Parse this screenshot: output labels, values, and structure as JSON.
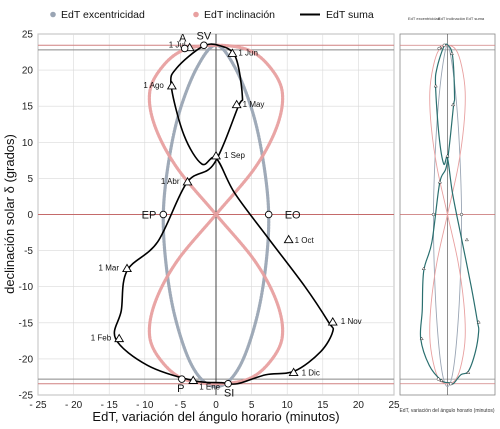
{
  "chart_data": {
    "type": "scatter",
    "xlabel": "EdT, variación del ángulo horario (minutos)",
    "ylabel": "declinación solar δ (grados)",
    "xlim": [
      -25,
      25
    ],
    "ylim": [
      -25,
      25
    ],
    "x_ticks": [
      -25,
      -20,
      -15,
      -10,
      -5,
      0,
      5,
      10,
      15,
      20,
      25
    ],
    "y_ticks": [
      -25,
      -20,
      -15,
      -10,
      -5,
      0,
      5,
      10,
      15,
      20,
      25
    ],
    "x_tick_labels": [
      "- 25",
      "- 20",
      "- 15",
      "- 10",
      "- 5",
      "0",
      "5",
      "10",
      "15",
      "20",
      "25"
    ],
    "y_tick_labels": [
      "-25",
      "-20",
      "-15",
      "-10",
      "-5",
      "0",
      "5",
      "10",
      "15",
      "20",
      "25"
    ],
    "legend_placement": "top",
    "reference_lines": {
      "horizontal": [
        23.44,
        22.8,
        0,
        -22.8,
        -23.44
      ],
      "vertical": [
        0
      ]
    },
    "series": [
      {
        "name": "EdT excentricidad",
        "style": "dotted",
        "color": "#9aa5b4",
        "x": [
          0,
          2.7,
          5.2,
          6.7,
          7.4,
          7.0,
          5.8,
          3.7,
          1.3,
          -1.3,
          -3.7,
          -5.8,
          -7.0,
          -7.4,
          -6.7,
          -5.2,
          -2.7,
          0
        ],
        "y": [
          23.44,
          20.3,
          14.0,
          7.0,
          0,
          -7.0,
          -14.0,
          -20.3,
          -23.44,
          -23.44,
          -20.3,
          -14.0,
          -7.0,
          0,
          7.0,
          14.0,
          20.3,
          23.44
        ]
      },
      {
        "name": "EdT inclinación",
        "style": "dotted",
        "color": "#e8a0a0",
        "x": [
          0,
          5.5,
          8.6,
          9.3,
          7.5,
          4.5,
          0,
          -4.5,
          -7.5,
          -9.3,
          -8.6,
          -5.5,
          0,
          5.5,
          8.6,
          9.3,
          7.5,
          4.5,
          0,
          -4.5,
          -7.5,
          -9.3,
          -8.6,
          -5.5,
          0
        ],
        "y": [
          0,
          6.5,
          12.3,
          17.0,
          20.5,
          22.8,
          23.44,
          22.8,
          20.5,
          17.0,
          12.3,
          6.5,
          0,
          -6.5,
          -12.3,
          -17.0,
          -20.5,
          -22.8,
          -23.44,
          -22.8,
          -20.5,
          -17.0,
          -12.3,
          -6.5,
          0
        ]
      },
      {
        "name": "EdT suma",
        "style": "solid",
        "color": "#000000",
        "x": [
          -3.2,
          -9.6,
          -14.1,
          -13.3,
          -12.5,
          -8.2,
          -4.1,
          -0.3,
          3.1,
          3.7,
          2.7,
          0.3,
          -2.0,
          -5.5,
          -6.3,
          -4.5,
          -2.0,
          0.0,
          2.6,
          7.2,
          12.5,
          15.8,
          16.4,
          14.7,
          11.0,
          7.0,
          3.0,
          0.8,
          -3.2
        ],
        "y": [
          -23.0,
          -20.9,
          -17.2,
          -13.3,
          -7.8,
          -3.8,
          4.4,
          7.0,
          14.9,
          16.4,
          21.9,
          23.44,
          23.2,
          20.3,
          17.9,
          11.0,
          7.0,
          7.8,
          3.0,
          -3.1,
          -10.0,
          -14.9,
          -16.2,
          -19.0,
          -21.7,
          -22.2,
          -23.44,
          -23.3,
          -23.0
        ]
      }
    ],
    "month_markers": [
      {
        "label": "1 Ene",
        "x": -3.2,
        "y": -23.0
      },
      {
        "label": "1 Feb",
        "x": -13.6,
        "y": -17.2
      },
      {
        "label": "1 Mar",
        "x": -12.5,
        "y": -7.5
      },
      {
        "label": "1 Abr",
        "x": -4.0,
        "y": 4.5
      },
      {
        "label": "1 May",
        "x": 2.9,
        "y": 15.2
      },
      {
        "label": "1 Jun",
        "x": 2.3,
        "y": 22.3
      },
      {
        "label": "1 Jul",
        "x": -3.7,
        "y": 23.1
      },
      {
        "label": "1 Ago",
        "x": -6.2,
        "y": 17.8
      },
      {
        "label": "1 Sep",
        "x": 0.0,
        "y": 8.1
      },
      {
        "label": "1 Oct",
        "x": 10.2,
        "y": -3.5
      },
      {
        "label": "1 Nov",
        "x": 16.4,
        "y": -14.9
      },
      {
        "label": "1 Dic",
        "x": 10.9,
        "y": -21.9
      }
    ],
    "point_labels": [
      {
        "label": "SV",
        "x": -1.7,
        "y": 23.44
      },
      {
        "label": "A",
        "x": -4.4,
        "y": 23.0
      },
      {
        "label": "EP",
        "x": -7.4,
        "y": 0
      },
      {
        "label": "EO",
        "x": 7.4,
        "y": 0
      },
      {
        "label": "P",
        "x": -4.8,
        "y": -22.8
      },
      {
        "label": "SI",
        "x": 1.7,
        "y": -23.44
      }
    ]
  },
  "thumbnail": {
    "legend_labels": [
      "EdT excentricidad",
      "EdT inclinación",
      "EdT suma"
    ],
    "xlabel": "EdT, variación del ángulo horario (minutos)"
  }
}
